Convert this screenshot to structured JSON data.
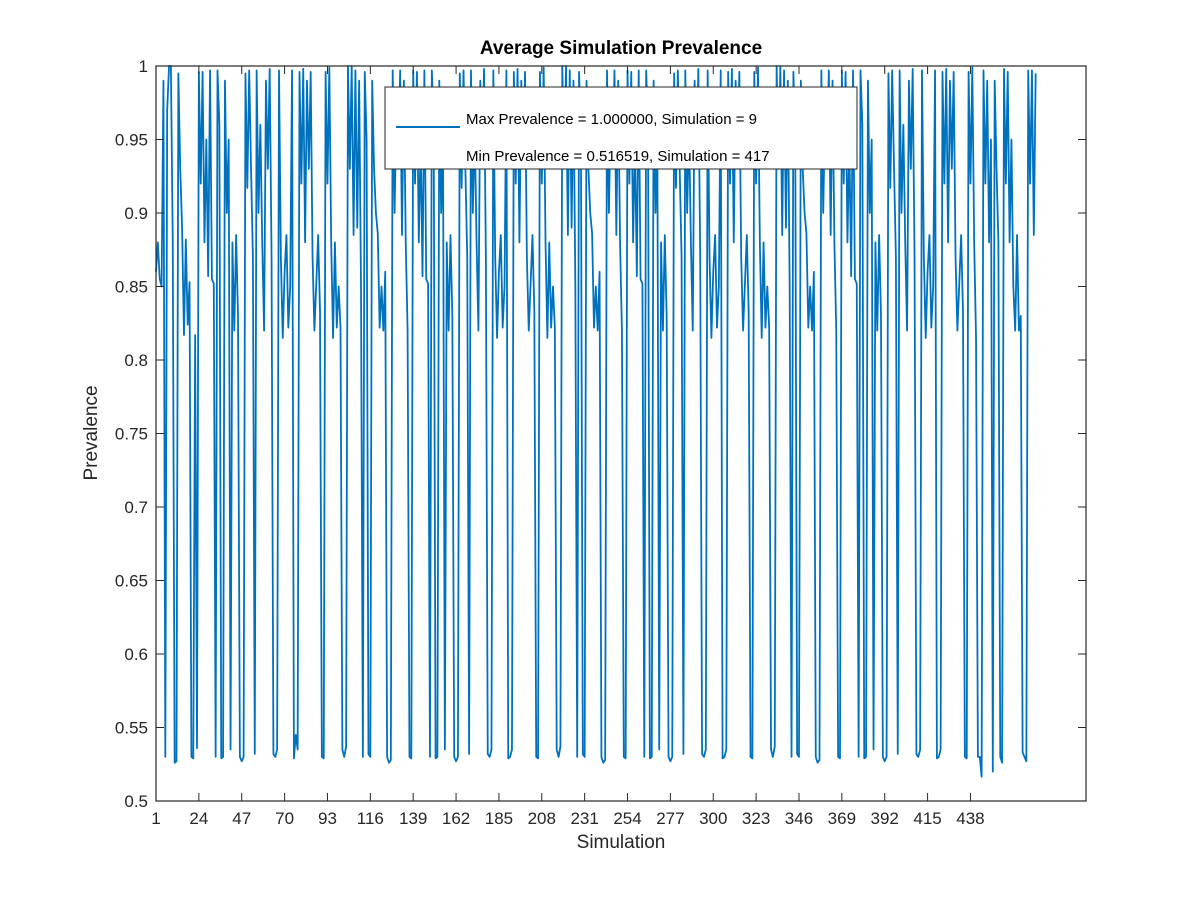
{
  "chart_data": {
    "type": "line",
    "title": "Average Simulation Prevalence",
    "xlabel": "Simulation",
    "ylabel": "Prevalence",
    "xlim": [
      1,
      500
    ],
    "ylim": [
      0.5,
      1
    ],
    "x_ticks": [
      1,
      24,
      47,
      70,
      93,
      116,
      139,
      162,
      185,
      208,
      231,
      254,
      277,
      300,
      323,
      346,
      369,
      392,
      415,
      438
    ],
    "y_ticks": [
      "0.5",
      "0.55",
      "0.6",
      "0.65",
      "0.7",
      "0.75",
      "0.8",
      "0.85",
      "0.9",
      "0.95",
      "1"
    ],
    "grid": false,
    "legend_position": "top-right",
    "legend_entries": [
      "Max Prevalence = 1.000000, Simulation = 9",
      "Min Prevalence = 0.516519, Simulation = 417"
    ],
    "series": [
      {
        "name": "Max Prevalence = 1.000000, Simulation = 9",
        "color": "#0072BD",
        "x_start": 1,
        "values": [
          0.86,
          0.88,
          0.855,
          0.85,
          0.99,
          0.53,
          0.97,
          1.0,
          1.0,
          0.88,
          0.526,
          0.527,
          0.995,
          0.93,
          0.89,
          0.817,
          0.882,
          0.824,
          0.853,
          0.53,
          0.529,
          0.817,
          0.536,
          0.996,
          0.92,
          0.996,
          0.88,
          0.95,
          0.857,
          0.997,
          0.855,
          0.852,
          0.53,
          0.997,
          0.96,
          0.529,
          0.53,
          0.99,
          0.9,
          0.95,
          0.535,
          0.88,
          0.82,
          0.885,
          0.83,
          0.53,
          0.527,
          0.53,
          0.995,
          0.917,
          0.997,
          0.93,
          0.87,
          0.532,
          0.997,
          0.9,
          0.96,
          0.88,
          0.82,
          0.99,
          0.93,
          0.998,
          0.87,
          0.532,
          0.53,
          0.535,
          0.997,
          0.87,
          0.815,
          0.86,
          0.885,
          0.822,
          0.85,
          0.997,
          0.529,
          0.545,
          0.535,
          0.996,
          0.92,
          0.998,
          0.88,
          0.99,
          0.93,
          0.996,
          0.87,
          0.82,
          0.852,
          0.885,
          0.833,
          0.53,
          0.529,
          0.996,
          0.92,
          0.999,
          0.88,
          0.815,
          0.88,
          0.822,
          0.85,
          0.822,
          0.535,
          0.53,
          0.537,
          1.0,
          0.93,
          1.0,
          0.885,
          0.997,
          0.89,
          0.99,
          0.85,
          0.53,
          0.996,
          0.95,
          0.532,
          0.53,
          0.99,
          0.93,
          0.9,
          0.886,
          0.822,
          0.85,
          0.82,
          0.86,
          0.53,
          0.526,
          0.528,
          0.997,
          0.9,
          0.97,
          0.93,
          0.997,
          0.885,
          0.99,
          0.88,
          0.82,
          0.53,
          0.529,
          0.997,
          0.92,
          0.996,
          0.88,
          0.95,
          0.857,
          0.997,
          0.855,
          0.852,
          0.53,
          0.997,
          0.96,
          0.529,
          0.53,
          0.99,
          0.9,
          0.95,
          0.535,
          0.88,
          0.82,
          0.885,
          0.83,
          0.53,
          0.527,
          0.53,
          0.995,
          0.917,
          0.997,
          0.93,
          0.87,
          0.532,
          0.997,
          0.9,
          0.96,
          0.88,
          0.82,
          0.99,
          0.93,
          0.998,
          0.87,
          0.532,
          0.53,
          0.535,
          0.997,
          0.87,
          0.815,
          0.86,
          0.885,
          0.822,
          0.85,
          0.997,
          0.529,
          0.53,
          0.535,
          0.996,
          0.92,
          0.998,
          0.88,
          0.99,
          0.93,
          0.996,
          0.87,
          0.82,
          0.852,
          0.885,
          0.833,
          0.53,
          0.529,
          0.996,
          0.92,
          0.999,
          0.88,
          0.815,
          0.88,
          0.822,
          0.85,
          0.822,
          0.535,
          0.53,
          0.537,
          1.0,
          0.93,
          1.0,
          0.885,
          0.997,
          0.89,
          0.99,
          0.85,
          0.53,
          0.996,
          0.95,
          0.532,
          0.53,
          0.99,
          0.93,
          0.9,
          0.886,
          0.822,
          0.85,
          0.82,
          0.86,
          0.53,
          0.526,
          0.528,
          0.997,
          0.9,
          0.97,
          0.93,
          0.997,
          0.885,
          0.99,
          0.88,
          0.82,
          0.53,
          0.529,
          0.997,
          0.92,
          0.996,
          0.88,
          0.95,
          0.857,
          0.997,
          0.855,
          0.852,
          0.53,
          0.997,
          0.96,
          0.529,
          0.53,
          0.99,
          0.9,
          0.95,
          0.535,
          0.88,
          0.82,
          0.885,
          0.83,
          0.53,
          0.527,
          0.53,
          0.995,
          0.917,
          0.997,
          0.93,
          0.87,
          0.532,
          0.997,
          0.9,
          0.96,
          0.88,
          0.82,
          0.99,
          0.93,
          0.998,
          0.87,
          0.532,
          0.53,
          0.535,
          0.997,
          0.87,
          0.815,
          0.86,
          0.885,
          0.822,
          0.85,
          0.997,
          0.529,
          0.53,
          0.535,
          0.996,
          0.92,
          0.998,
          0.88,
          0.99,
          0.93,
          0.996,
          0.87,
          0.82,
          0.852,
          0.885,
          0.833,
          0.53,
          0.529,
          0.996,
          0.92,
          0.999,
          0.88,
          0.815,
          0.88,
          0.822,
          0.85,
          0.822,
          0.535,
          0.53,
          0.537,
          1.0,
          0.93,
          1.0,
          0.885,
          0.997,
          0.89,
          0.99,
          0.85,
          0.53,
          0.996,
          0.95,
          0.532,
          0.53,
          0.99,
          0.93,
          0.9,
          0.886,
          0.822,
          0.85,
          0.82,
          0.86,
          0.53,
          0.526,
          0.528,
          0.997,
          0.9,
          0.97,
          0.93,
          0.997,
          0.885,
          0.99,
          0.88,
          0.82,
          0.53,
          0.529,
          0.997,
          0.92,
          0.996,
          0.88,
          0.95,
          0.857,
          0.997,
          0.855,
          0.852,
          0.53,
          0.997,
          0.96,
          0.529,
          0.53,
          0.99,
          0.9,
          0.95,
          0.535,
          0.88,
          0.82,
          0.885,
          0.83,
          0.53,
          0.527,
          0.53,
          0.995,
          0.917,
          0.997,
          0.93,
          0.87,
          0.532,
          0.997,
          0.9,
          0.96,
          0.88,
          0.82,
          0.99,
          0.93,
          0.998,
          0.87,
          0.532,
          0.53,
          0.535,
          0.997,
          0.87,
          0.815,
          0.86,
          0.885,
          0.822,
          0.85,
          0.997,
          0.529,
          0.53,
          0.535,
          0.996,
          0.92,
          0.998,
          0.88,
          0.99,
          0.93,
          0.996,
          0.87,
          0.82,
          0.852,
          0.885,
          0.833,
          0.53,
          0.529,
          0.996,
          0.92,
          0.999,
          0.88,
          0.815,
          0.53,
          0.53,
          0.5165,
          0.997,
          0.92,
          0.99,
          0.88,
          0.95,
          0.52,
          0.99,
          0.93,
          0.88,
          0.53,
          0.526,
          0.998,
          0.92,
          0.996,
          0.88,
          0.95,
          0.85,
          0.82,
          0.885,
          0.82,
          0.83,
          0.533,
          0.53,
          0.527,
          0.997,
          0.92,
          0.997,
          0.885,
          0.995
        ]
      }
    ]
  }
}
